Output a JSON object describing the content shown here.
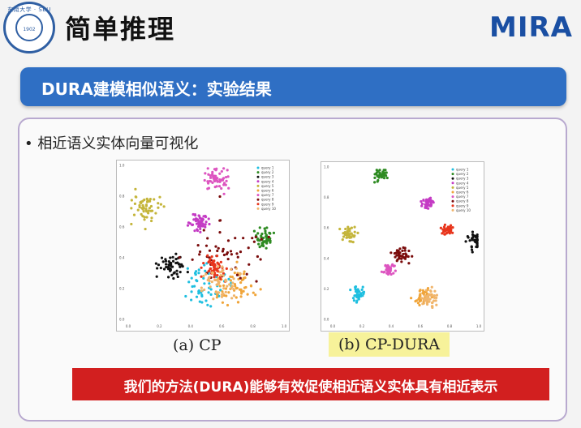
{
  "header": {
    "title": "简单推理",
    "brand": "MIRA",
    "logo_text": "东南大学 · SEU",
    "logo_year": "1902"
  },
  "banner": {
    "text": "DURA建模相似语义：实验结果"
  },
  "bullet": "相近语义实体向量可视化",
  "legend_labels": [
    "query 1",
    "query 2",
    "query 3",
    "query 4",
    "query 5",
    "query 6",
    "query 7",
    "query 8",
    "query 9",
    "query 10"
  ],
  "colors": [
    "#1ebfe0",
    "#2e8b22",
    "#111111",
    "#c43bc4",
    "#c4b53a",
    "#f0a53a",
    "#dd55c0",
    "#7a0c0c",
    "#e8351c",
    "#f0b56c"
  ],
  "captions": {
    "left": "(a) CP",
    "right": "(b) CP-DURA"
  },
  "conclusion": "我们的方法(DURA)能够有效促使相近语义实体具有相近表示",
  "chart_data": [
    {
      "type": "scatter",
      "title": "(a) CP",
      "xlim": [
        0,
        1
      ],
      "ylim": [
        0,
        1
      ],
      "ticks": [
        "0.0",
        "0.2",
        "0.4",
        "0.6",
        "0.8",
        "1.0"
      ],
      "series": [
        {
          "name": "query 1",
          "cx": 0.48,
          "cy": 0.22,
          "spread": 0.07
        },
        {
          "name": "query 2",
          "cx": 0.87,
          "cy": 0.53,
          "spread": 0.03
        },
        {
          "name": "query 3",
          "cx": 0.28,
          "cy": 0.34,
          "spread": 0.04
        },
        {
          "name": "query 4",
          "cx": 0.45,
          "cy": 0.63,
          "spread": 0.03
        },
        {
          "name": "query 5",
          "cx": 0.11,
          "cy": 0.72,
          "spread": 0.05
        },
        {
          "name": "query 6",
          "cx": 0.7,
          "cy": 0.2,
          "spread": 0.06
        },
        {
          "name": "query 7",
          "cx": 0.57,
          "cy": 0.91,
          "spread": 0.04
        },
        {
          "name": "query 8",
          "cx": 0.63,
          "cy": 0.43,
          "spread": 0.1
        },
        {
          "name": "query 9",
          "cx": 0.55,
          "cy": 0.33,
          "spread": 0.04
        },
        {
          "name": "query 10",
          "cx": 0.6,
          "cy": 0.24,
          "spread": 0.06
        }
      ]
    },
    {
      "type": "scatter",
      "title": "(b) CP-DURA",
      "xlim": [
        0,
        1
      ],
      "ylim": [
        0,
        1
      ],
      "ticks": [
        "0.0",
        "0.2",
        "0.4",
        "0.6",
        "0.8",
        "1.0"
      ],
      "series": [
        {
          "name": "query 1",
          "cx": 0.18,
          "cy": 0.17,
          "spread": 0.025
        },
        {
          "name": "query 2",
          "cx": 0.33,
          "cy": 0.95,
          "spread": 0.02
        },
        {
          "name": "query 3",
          "cx": 0.98,
          "cy": 0.52,
          "spread": 0.025
        },
        {
          "name": "query 4",
          "cx": 0.65,
          "cy": 0.76,
          "spread": 0.02
        },
        {
          "name": "query 5",
          "cx": 0.11,
          "cy": 0.56,
          "spread": 0.025
        },
        {
          "name": "query 6",
          "cx": 0.63,
          "cy": 0.15,
          "spread": 0.03
        },
        {
          "name": "query 7",
          "cx": 0.38,
          "cy": 0.33,
          "spread": 0.02
        },
        {
          "name": "query 8",
          "cx": 0.47,
          "cy": 0.42,
          "spread": 0.03
        },
        {
          "name": "query 9",
          "cx": 0.78,
          "cy": 0.59,
          "spread": 0.02
        },
        {
          "name": "query 10",
          "cx": 0.67,
          "cy": 0.13,
          "spread": 0.03
        }
      ]
    }
  ]
}
